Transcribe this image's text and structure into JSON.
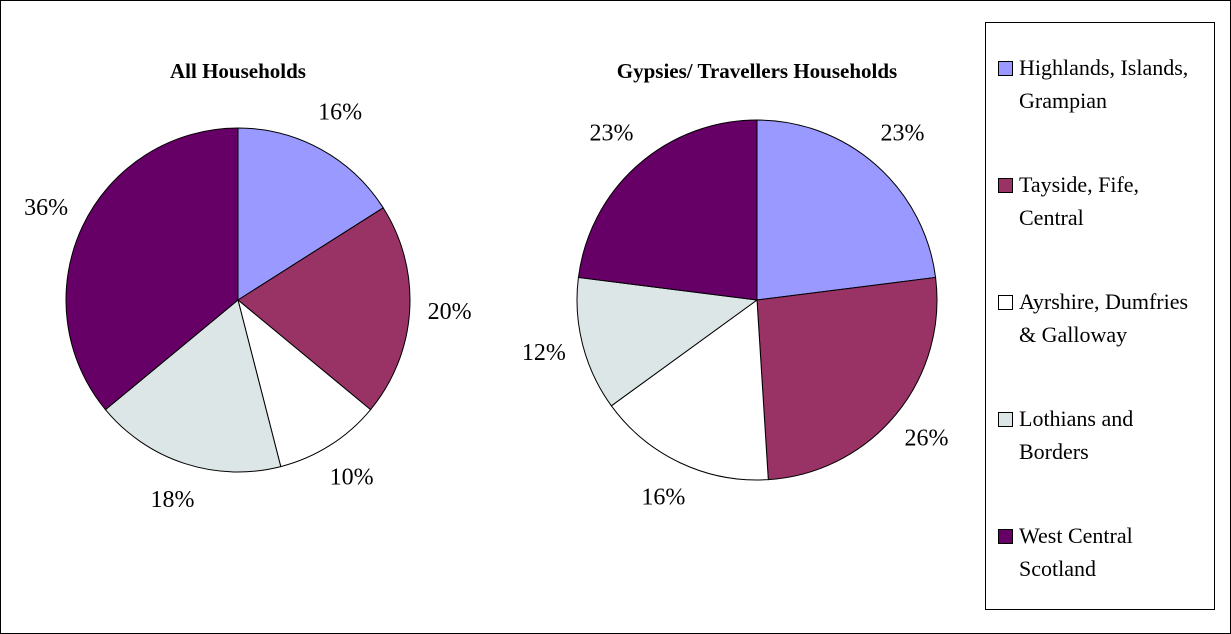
{
  "legend": {
    "labels": [
      "Highlands, Islands, Grampian",
      "Tayside, Fife, Central",
      "Ayrshire, Dumfries & Galloway",
      "Lothians and Borders",
      "West Central Scotland"
    ],
    "colors": [
      "#9999ff",
      "#993366",
      "#ffffff",
      "#dce6e6",
      "#660066"
    ]
  },
  "chart_data": [
    {
      "type": "pie",
      "title": "All Households",
      "values": [
        16,
        20,
        10,
        18,
        36
      ],
      "value_labels": [
        "16%",
        "20%",
        "10%",
        "18%",
        "36%"
      ]
    },
    {
      "type": "pie",
      "title": "Gypsies/ Travellers Households",
      "values": [
        23,
        26,
        16,
        12,
        23
      ],
      "value_labels": [
        "23%",
        "26%",
        "16%",
        "12%",
        "23%"
      ]
    }
  ]
}
